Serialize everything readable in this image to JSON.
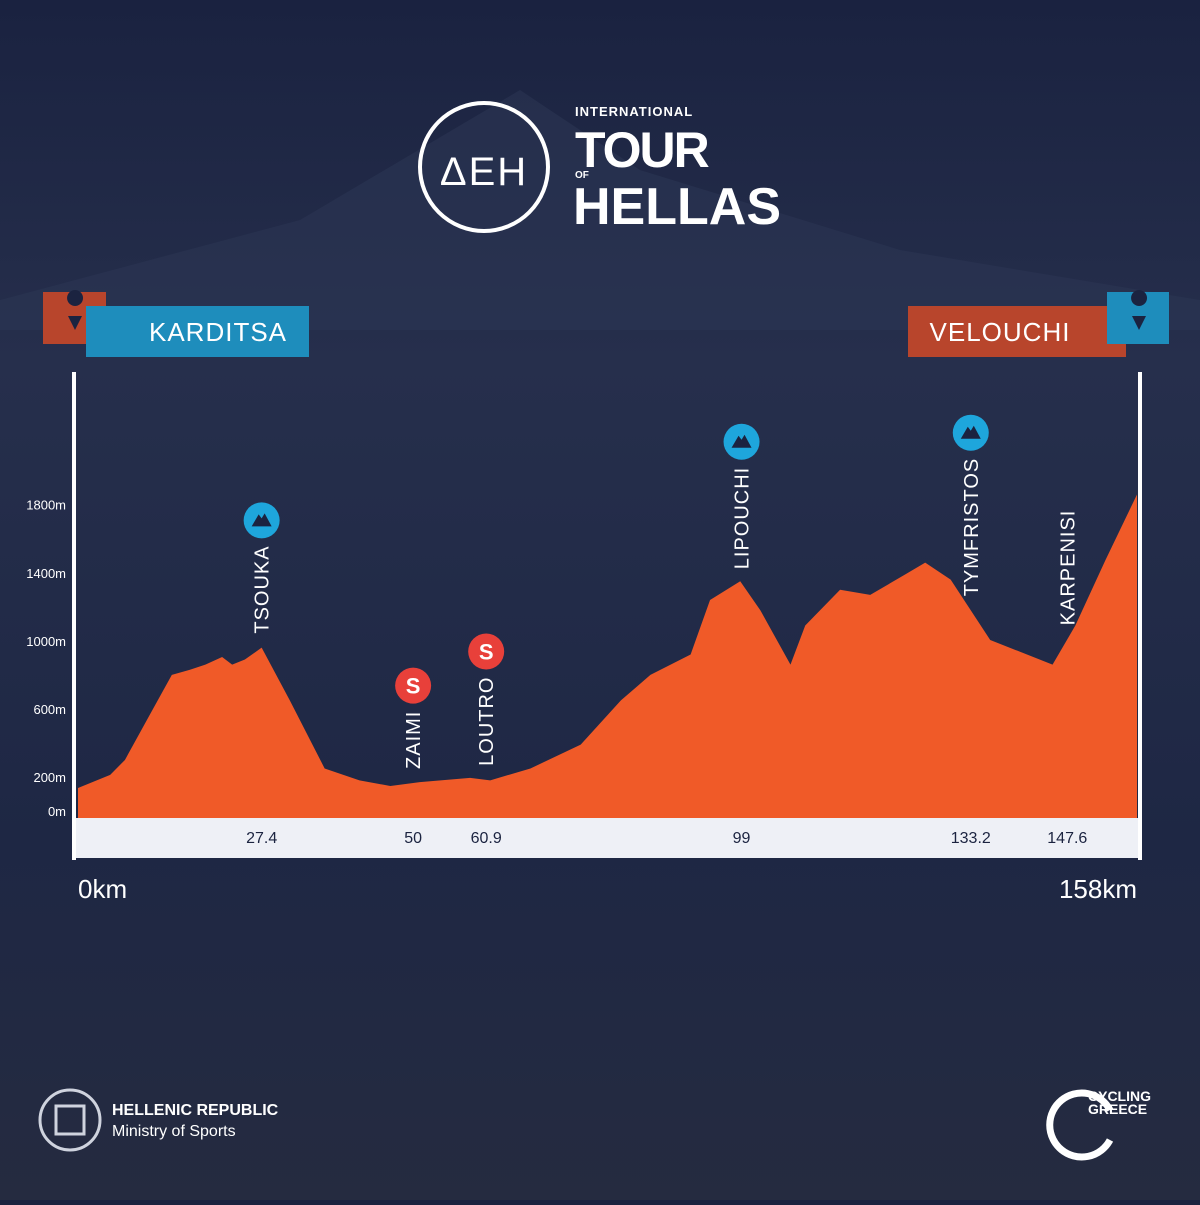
{
  "brand": {
    "sponsor": "ΔEH",
    "international": "INTERNATIONAL",
    "tour": "TOUR",
    "of": "OF",
    "hellas": "HELLAS"
  },
  "chart_data": {
    "type": "area",
    "start": "KARDITSA",
    "finish": "VELOUCHI",
    "color": "#f05a28",
    "x": [
      0,
      4.8,
      7,
      10.7,
      14,
      16.7,
      19,
      21.5,
      23,
      24.9,
      27.4,
      31.6,
      36.8,
      42,
      46.6,
      51,
      58.5,
      61.5,
      67.5,
      75,
      81,
      85.4,
      91.4,
      94.3,
      98.8,
      101.8,
      106.3,
      108.5,
      113.7,
      118.2,
      123.4,
      126.4,
      130.2,
      136.1,
      140.6,
      145.4,
      148.8,
      153.3,
      158
    ],
    "values": [
      135,
      212,
      300,
      565,
      800,
      830,
      860,
      905,
      860,
      890,
      960,
      650,
      250,
      180,
      147,
      170,
      195,
      180,
      250,
      390,
      650,
      800,
      920,
      1240,
      1350,
      1180,
      860,
      1090,
      1300,
      1270,
      1390,
      1460,
      1360,
      1005,
      935,
      860,
      1090,
      1475,
      1860
    ],
    "xlim": [
      0,
      158
    ],
    "xticks": [
      {
        "value": 0,
        "label": "0km"
      },
      27.4,
      50,
      60.9,
      99,
      133.2,
      147.6,
      {
        "value": 158,
        "label": "158km"
      }
    ],
    "ylim": [
      0,
      2580
    ],
    "yticks": [
      {
        "value": 0,
        "label": "0m"
      },
      {
        "value": 200,
        "label": "200m"
      },
      {
        "value": 600,
        "label": "600m"
      },
      {
        "value": 1000,
        "label": "1000m"
      },
      {
        "value": 1400,
        "label": "1400m"
      },
      {
        "value": 1800,
        "label": "1800m"
      }
    ],
    "points": [
      {
        "name": "TSOUKA",
        "km": 27.4,
        "kind": "mountain"
      },
      {
        "name": "ZAIMI",
        "km": 50,
        "kind": "sprint",
        "icon": "S"
      },
      {
        "name": "LOUTRO",
        "km": 60.9,
        "kind": "sprint",
        "icon": "S"
      },
      {
        "name": "LIPOUCHI",
        "km": 99,
        "kind": "mountain"
      },
      {
        "name": "TYMFRISTOS",
        "km": 133.2,
        "kind": "mountain"
      },
      {
        "name": "KARPENISI",
        "km": 147.6,
        "kind": "town"
      }
    ],
    "kind_colors": {
      "mountain": "#1ea6dc",
      "sprint": "#e8403a"
    }
  },
  "footer": {
    "republic": "HELLENIC REPUBLIC",
    "ministry": "Ministry of Sports",
    "cycling": "CYCLING",
    "greece": "GREECE"
  }
}
